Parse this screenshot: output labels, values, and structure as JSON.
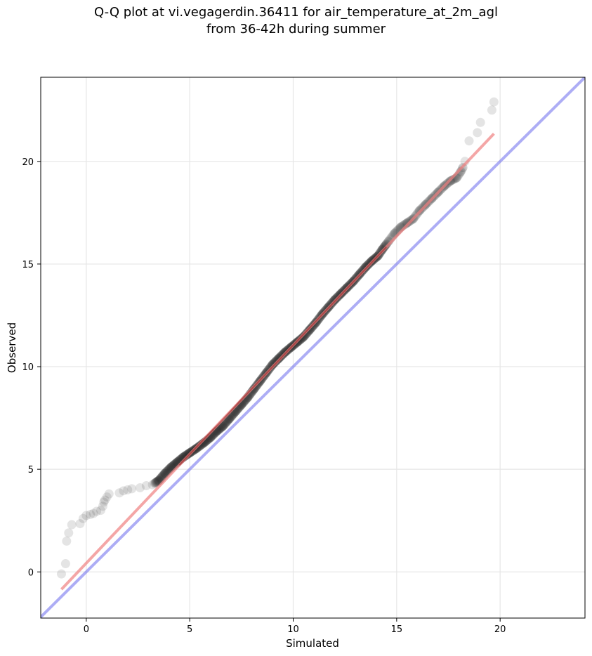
{
  "chart_data": {
    "type": "scatter",
    "title": "Q-Q plot at vi.vegagerdin.36411 for air_temperature_at_2m_agl",
    "subtitle": "from 36-42h during summer",
    "xlabel": "Simulated",
    "ylabel": "Observed",
    "xlim": [
      -2.2,
      24.1
    ],
    "ylim": [
      -2.25,
      24.1
    ],
    "xticks": [
      0,
      5,
      10,
      15,
      20
    ],
    "yticks": [
      0,
      5,
      10,
      15,
      20
    ],
    "grid": true,
    "colors": {
      "points": "#222222",
      "fit_line": "#f08080",
      "fit_core": "#8b0000",
      "identity_line": "#7777ee"
    },
    "series": [
      {
        "kind": "quantile-points",
        "x": [
          -1.2,
          -1.0,
          -0.95,
          -0.85,
          -0.7,
          -0.3,
          -0.15,
          0.0,
          0.2,
          0.35,
          0.5,
          0.7,
          0.8,
          0.85,
          0.9,
          1.0,
          1.1,
          1.6,
          1.8,
          2.0,
          2.2,
          2.6,
          2.9,
          3.2,
          3.5,
          3.8,
          4.1,
          4.4,
          4.7,
          5.0,
          5.3,
          5.7,
          6.0,
          6.3,
          6.6,
          6.9,
          7.2,
          7.5,
          7.8,
          8.1,
          8.4,
          8.7,
          9.0,
          9.3,
          9.6,
          9.9,
          10.2,
          10.5,
          10.8,
          11.1,
          11.4,
          11.7,
          12.0,
          12.3,
          12.6,
          12.9,
          13.2,
          13.5,
          13.8,
          14.1,
          14.3,
          14.6,
          14.9,
          15.2,
          15.5,
          15.8,
          16.1,
          16.4,
          16.7,
          17.0,
          17.3,
          17.6,
          17.9,
          18.1,
          18.2,
          18.3,
          18.5,
          18.9,
          19.05,
          19.6,
          19.7
        ],
        "y": [
          -0.1,
          0.4,
          1.5,
          1.9,
          2.3,
          2.35,
          2.6,
          2.75,
          2.8,
          2.85,
          2.95,
          3.0,
          3.2,
          3.4,
          3.5,
          3.65,
          3.8,
          3.85,
          3.95,
          4.0,
          4.05,
          4.1,
          4.2,
          4.25,
          4.45,
          4.8,
          5.1,
          5.35,
          5.6,
          5.8,
          6.0,
          6.3,
          6.55,
          6.85,
          7.1,
          7.45,
          7.8,
          8.15,
          8.5,
          8.9,
          9.3,
          9.7,
          10.1,
          10.4,
          10.7,
          10.95,
          11.2,
          11.45,
          11.8,
          12.15,
          12.55,
          12.9,
          13.25,
          13.55,
          13.85,
          14.15,
          14.5,
          14.85,
          15.15,
          15.4,
          15.7,
          16.1,
          16.5,
          16.8,
          17.0,
          17.2,
          17.6,
          17.9,
          18.2,
          18.5,
          18.8,
          19.05,
          19.2,
          19.5,
          19.7,
          20.0,
          21.0,
          21.4,
          21.9,
          22.5,
          22.9
        ]
      },
      {
        "kind": "fit-line",
        "x": [
          -1.2,
          19.7
        ],
        "y": [
          -0.85,
          21.35
        ]
      },
      {
        "kind": "identity-line",
        "x": [
          -2.2,
          24.1
        ],
        "y": [
          -2.2,
          24.1
        ]
      }
    ]
  }
}
